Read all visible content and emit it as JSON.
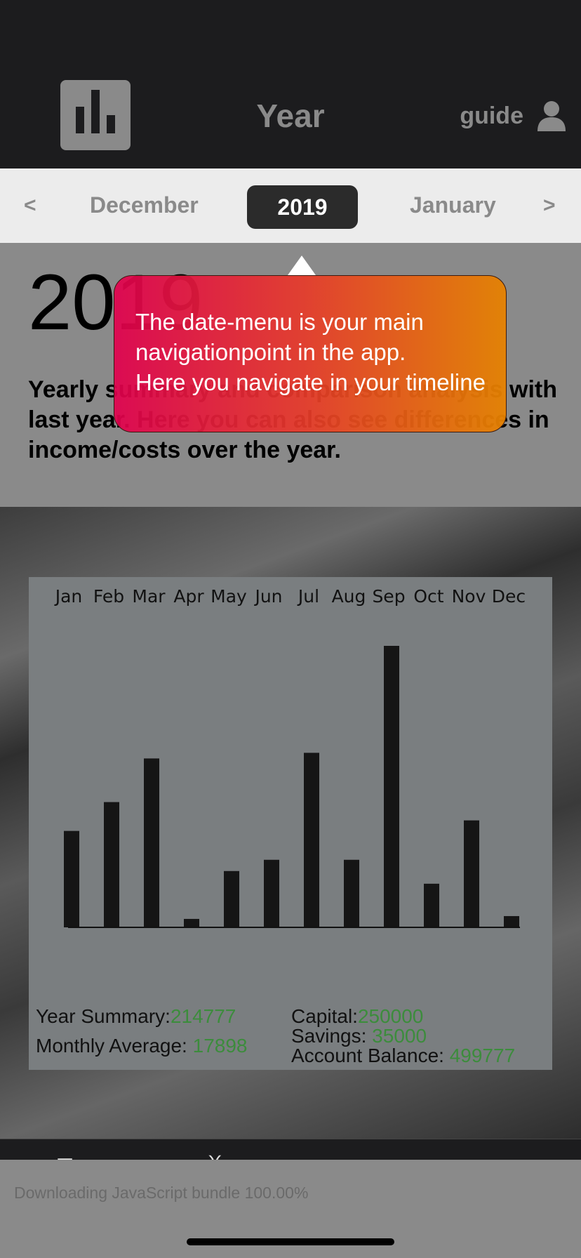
{
  "header": {
    "title": "Year",
    "guide_label": "guide",
    "logo_icon": "bar-chart-icon",
    "user_icon": "user-icon"
  },
  "datebar": {
    "prev": "<",
    "prev_month": "December",
    "year": "2019",
    "next_month": "January",
    "next": ">"
  },
  "info": {
    "big_year": "2019",
    "description": "Yearly summary and comparison analysis with last year. Here you can also see differences in income/costs over the year."
  },
  "tooltip": {
    "line1": "The date-menu is your main",
    "line2": "navigationpoint in the app.",
    "line3": "Here you navigate in your timeline"
  },
  "chart_data": {
    "type": "bar",
    "categories": [
      "Jan",
      "Feb",
      "Mar",
      "Apr",
      "May",
      "Jun",
      "Jul",
      "Aug",
      "Sep",
      "Oct",
      "Nov",
      "Dec"
    ],
    "values": [
      137,
      178,
      240,
      12,
      80,
      96,
      248,
      96,
      400,
      62,
      152,
      16
    ],
    "title": "",
    "xlabel": "",
    "ylabel": "",
    "ylim": [
      0,
      400
    ],
    "grid": false,
    "bar_color": "#151515"
  },
  "stats": {
    "year_summary_label": "Year Summary:",
    "year_summary_value": "214777",
    "monthly_average_label": "Monthly Average: ",
    "monthly_average_value": "17898",
    "capital_label": "Capital:",
    "capital_value": "250000",
    "savings_label": "Savings: ",
    "savings_value": "35000",
    "account_balance_label": "Account Balance: ",
    "account_balance_value": "499777",
    "value_color": "#3c8c3c"
  },
  "toast": {
    "text": "Downloading JavaScript bundle 100.00%"
  }
}
